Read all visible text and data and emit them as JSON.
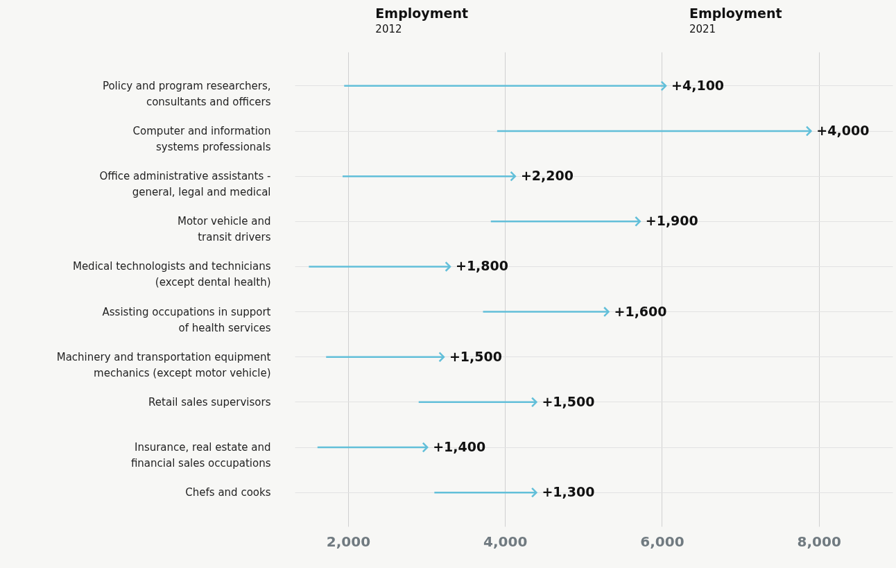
{
  "chart_data": {
    "type": "bar",
    "orientation": "horizontal",
    "categories": [
      "Policy and program researchers,\nconsultants and officers",
      "Computer and information\nsystems professionals",
      "Office administrative assistants -\ngeneral, legal and medical",
      "Motor vehicle and\ntransit drivers",
      "Medical technologists and technicians\n(except dental health)",
      "Assisting occupations in support\nof health services",
      "Machinery and transportation equipment\nmechanics (except motor vehicle)",
      "Retail sales supervisors",
      "Insurance, real estate and\nfinancial sales occupations",
      "Chefs and cooks"
    ],
    "base": [
      1950,
      3900,
      1930,
      3820,
      1500,
      3720,
      1720,
      2900,
      1610,
      3100
    ],
    "values": [
      4100,
      4000,
      2200,
      1900,
      1800,
      1600,
      1500,
      1500,
      1400,
      1300
    ],
    "value_labels": [
      "+4,100",
      "+4,000",
      "+2,200",
      "+1,900",
      "+1,800",
      "+1,600",
      "+1,500",
      "+1,500",
      "+1,400",
      "+1,300"
    ],
    "color": "#62bfd9",
    "xlim": [
      1320,
      8940
    ],
    "xticks": [
      {
        "value": 2000,
        "label": "2,000"
      },
      {
        "value": 4000,
        "label": "4,000"
      },
      {
        "value": 6000,
        "label": "6,000"
      },
      {
        "value": 8000,
        "label": "8,000"
      }
    ],
    "grid": true,
    "annotations": [
      "Employment\n2012",
      "Employment\n2021"
    ]
  }
}
